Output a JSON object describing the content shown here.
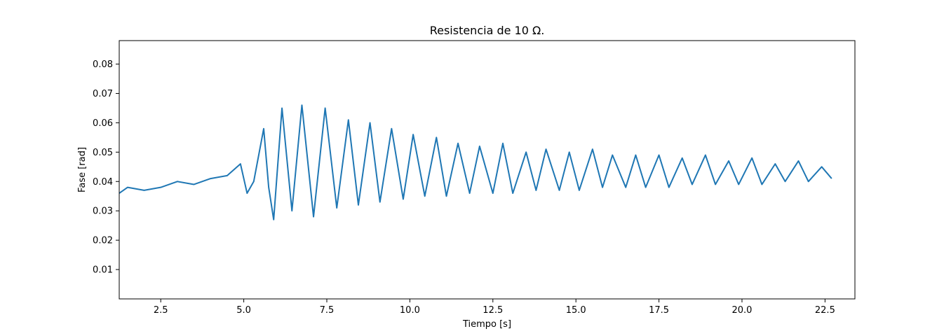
{
  "chart_data": {
    "type": "line",
    "title": "Resistencia de 10 Ω.",
    "xlabel": "Tiempo [s]",
    "ylabel": "Fase [rad]",
    "xlim": [
      1.25,
      23.4
    ],
    "ylim": [
      0.0,
      0.088
    ],
    "x_ticks": [
      2.5,
      5.0,
      7.5,
      10.0,
      12.5,
      15.0,
      17.5,
      20.0,
      22.5
    ],
    "x_tick_labels": [
      "2.5",
      "5.0",
      "7.5",
      "10.0",
      "12.5",
      "15.0",
      "17.5",
      "20.0",
      "22.5"
    ],
    "y_ticks": [
      0.01,
      0.02,
      0.03,
      0.04,
      0.05,
      0.06,
      0.07,
      0.08
    ],
    "y_tick_labels": [
      "0.01",
      "0.02",
      "0.03",
      "0.04",
      "0.05",
      "0.06",
      "0.07",
      "0.08"
    ],
    "grid": false,
    "series": [
      {
        "color": "#1f77b4",
        "x": [
          1.25,
          1.5,
          2.0,
          2.5,
          3.0,
          3.5,
          4.0,
          4.5,
          4.9,
          5.1,
          5.3,
          5.6,
          5.75,
          5.9,
          6.15,
          6.45,
          6.75,
          7.1,
          7.45,
          7.8,
          8.15,
          8.45,
          8.8,
          9.1,
          9.45,
          9.8,
          10.1,
          10.45,
          10.8,
          11.1,
          11.45,
          11.8,
          12.1,
          12.5,
          12.8,
          13.1,
          13.5,
          13.8,
          14.1,
          14.5,
          14.8,
          15.1,
          15.5,
          15.8,
          16.1,
          16.5,
          16.8,
          17.1,
          17.5,
          17.8,
          18.2,
          18.5,
          18.9,
          19.2,
          19.6,
          19.9,
          20.3,
          20.6,
          21.0,
          21.3,
          21.7,
          22.0,
          22.4,
          22.7
        ],
        "y": [
          0.036,
          0.038,
          0.037,
          0.038,
          0.04,
          0.039,
          0.041,
          0.042,
          0.046,
          0.036,
          0.04,
          0.058,
          0.038,
          0.027,
          0.065,
          0.03,
          0.066,
          0.028,
          0.065,
          0.031,
          0.061,
          0.032,
          0.06,
          0.033,
          0.058,
          0.034,
          0.056,
          0.035,
          0.055,
          0.035,
          0.053,
          0.036,
          0.052,
          0.036,
          0.053,
          0.036,
          0.05,
          0.037,
          0.051,
          0.037,
          0.05,
          0.037,
          0.051,
          0.038,
          0.049,
          0.038,
          0.049,
          0.038,
          0.049,
          0.038,
          0.048,
          0.039,
          0.049,
          0.039,
          0.047,
          0.039,
          0.048,
          0.039,
          0.046,
          0.04,
          0.047,
          0.04,
          0.045,
          0.041
        ]
      }
    ]
  }
}
